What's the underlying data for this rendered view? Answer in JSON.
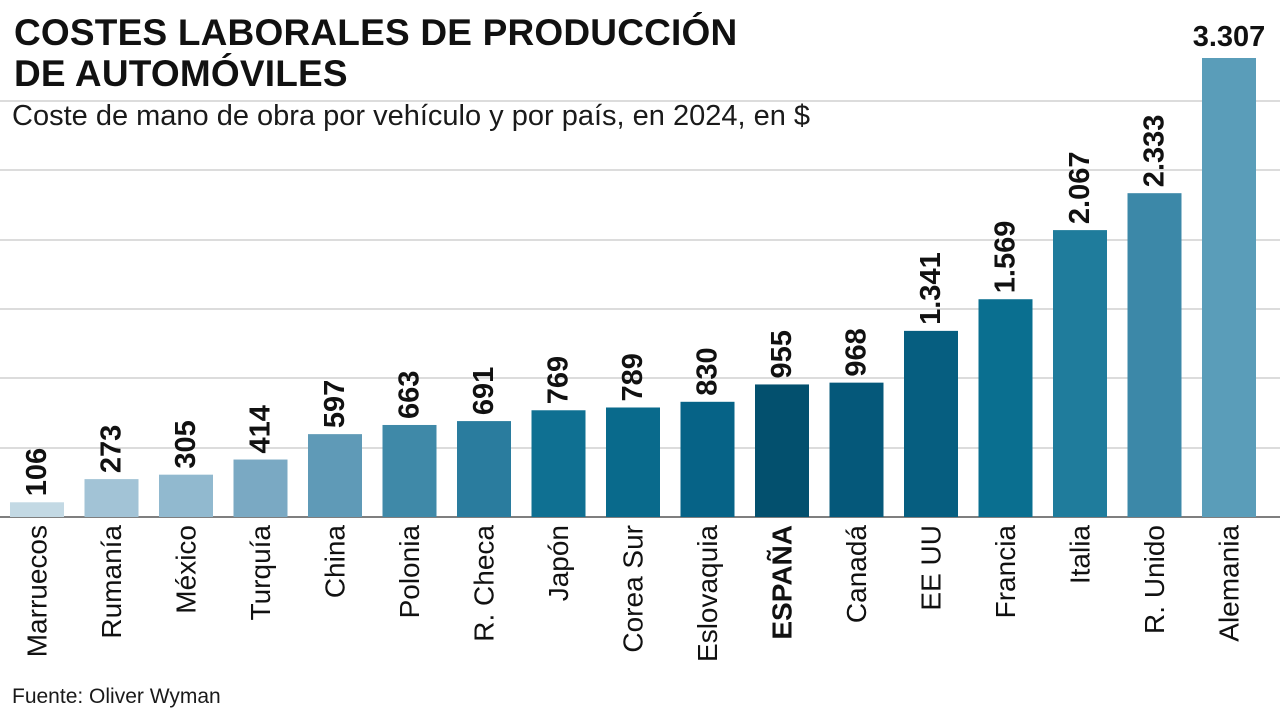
{
  "header": {
    "title_line1": "COSTES LABORALES DE PRODUCCIÓN",
    "title_line2": "DE AUTOMÓVILES",
    "subtitle": "Coste de mano de obra por vehículo y por país, en 2024, en $"
  },
  "footer": {
    "source": "Fuente: Oliver Wyman"
  },
  "colors": {
    "gridline": "#c8c8c8",
    "axis": "#555555",
    "bars": [
      "#c3d9e4",
      "#a2c3d6",
      "#91b9cf",
      "#7aa9c3",
      "#5f9ab7",
      "#3f89a8",
      "#2a7c9e",
      "#0f7092",
      "#096a8c",
      "#066387",
      "#03506e",
      "#05587a",
      "#065e80",
      "#0a6f90",
      "#1f7c9c",
      "#3c88a8",
      "#5a9db9"
    ]
  },
  "chart_data": {
    "type": "bar",
    "title": "COSTES LABORALES DE PRODUCCIÓN DE AUTOMÓVILES",
    "subtitle": "Coste de mano de obra por vehículo y por país, en 2024, en $",
    "xlabel": "",
    "ylabel": "",
    "ylim": [
      0,
      3307
    ],
    "grid": true,
    "highlight": "ESPAÑA",
    "categories": [
      "Marruecos",
      "Rumanía",
      "México",
      "Turquía",
      "China",
      "Polonia",
      "R. Checa",
      "Japón",
      "Corea Sur",
      "Eslovaquia",
      "ESPAÑA",
      "Canadá",
      "EE UU",
      "Francia",
      "Italia",
      "R. Unido",
      "Alemania"
    ],
    "values": [
      106,
      273,
      305,
      414,
      597,
      663,
      691,
      769,
      789,
      830,
      955,
      968,
      1341,
      1569,
      2067,
      2333,
      3307
    ],
    "value_labels": [
      "106",
      "273",
      "305",
      "414",
      "597",
      "663",
      "691",
      "769",
      "789",
      "830",
      "955",
      "968",
      "1.341",
      "1.569",
      "2.067",
      "2.333",
      "3.307"
    ]
  }
}
